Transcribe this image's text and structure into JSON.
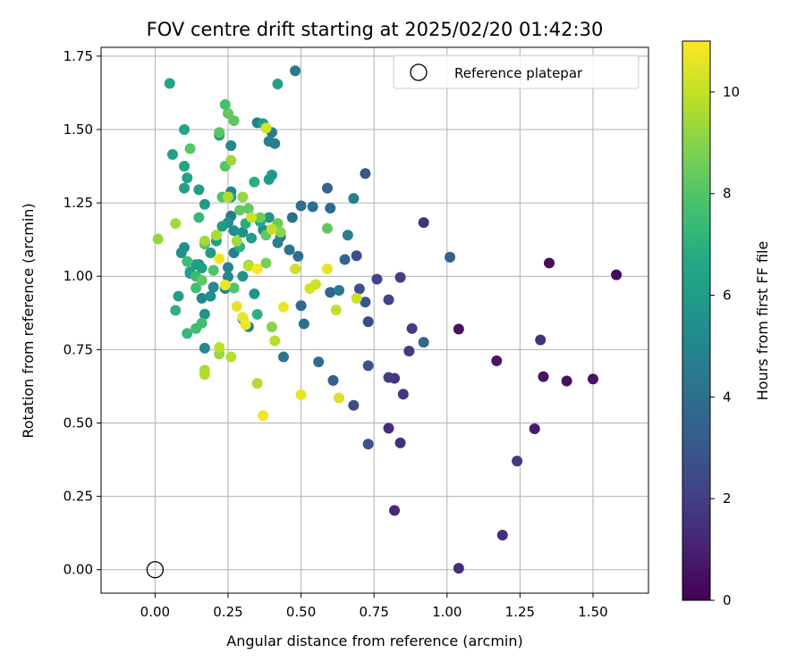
{
  "chart_data": {
    "type": "scatter",
    "title": "FOV centre drift starting at 2025/02/20 01:42:30",
    "xlabel": "Angular distance from reference (arcmin)",
    "ylabel": "Rotation from reference (arcmin)",
    "xlim": [
      -0.185,
      1.69
    ],
    "ylim": [
      -0.08,
      1.78
    ],
    "xticks": [
      "0.00",
      "0.25",
      "0.50",
      "0.75",
      "1.00",
      "1.25",
      "1.50"
    ],
    "xtick_values": [
      0,
      0.25,
      0.5,
      0.75,
      1.0,
      1.25,
      1.5
    ],
    "yticks": [
      "0.00",
      "0.25",
      "0.50",
      "0.75",
      "1.00",
      "1.25",
      "1.50",
      "1.75"
    ],
    "ytick_values": [
      0,
      0.25,
      0.5,
      0.75,
      1.0,
      1.25,
      1.5,
      1.75
    ],
    "grid": true,
    "legend": {
      "position": "top-right",
      "label": "Reference platepar",
      "marker": "hollow-circle"
    },
    "reference_point": {
      "x": 0.0,
      "y": 0.0
    },
    "colorbar": {
      "label": "Hours from first FF file",
      "colormap": "viridis",
      "range": [
        0,
        11
      ],
      "ticks": [
        "0",
        "2",
        "4",
        "6",
        "8",
        "10"
      ],
      "tick_values": [
        0,
        2,
        4,
        6,
        8,
        10
      ]
    },
    "points": [
      [
        1.58,
        1.005,
        0.3
      ],
      [
        1.35,
        1.045,
        0.4
      ],
      [
        1.04,
        0.82,
        0.5
      ],
      [
        1.5,
        0.65,
        0.6
      ],
      [
        1.41,
        0.643,
        0.5
      ],
      [
        1.33,
        0.658,
        0.6
      ],
      [
        1.17,
        0.712,
        0.7
      ],
      [
        1.3,
        0.48,
        0.8
      ],
      [
        1.04,
        0.005,
        1.4
      ],
      [
        1.19,
        0.118,
        1.5
      ],
      [
        1.24,
        0.37,
        1.8
      ],
      [
        1.32,
        0.783,
        1.6
      ],
      [
        0.92,
        1.183,
        1.6
      ],
      [
        0.8,
        0.482,
        1.4
      ],
      [
        0.82,
        0.202,
        1.2
      ],
      [
        0.84,
        0.432,
        1.5
      ],
      [
        0.85,
        0.598,
        1.8
      ],
      [
        0.82,
        0.652,
        1.6
      ],
      [
        0.8,
        0.655,
        2.0
      ],
      [
        0.87,
        0.745,
        1.8
      ],
      [
        0.88,
        0.822,
        1.9
      ],
      [
        0.84,
        0.996,
        2.0
      ],
      [
        0.8,
        0.92,
        2.3
      ],
      [
        0.76,
        0.99,
        2.2
      ],
      [
        0.73,
        0.428,
        2.8
      ],
      [
        0.68,
        0.56,
        2.6
      ],
      [
        0.73,
        0.695,
        2.9
      ],
      [
        0.73,
        0.845,
        2.5
      ],
      [
        0.72,
        0.912,
        2.9
      ],
      [
        0.7,
        0.957,
        2.6
      ],
      [
        0.69,
        1.07,
        2.6
      ],
      [
        0.72,
        1.35,
        3.0
      ],
      [
        1.01,
        1.065,
        3.3
      ],
      [
        0.92,
        0.775,
        3.6
      ],
      [
        0.61,
        0.645,
        3.4
      ],
      [
        0.65,
        1.057,
        3.7
      ],
      [
        0.59,
        1.3,
        3.5
      ],
      [
        0.6,
        0.945,
        3.5
      ],
      [
        0.56,
        0.708,
        3.9
      ],
      [
        0.6,
        1.232,
        3.8
      ],
      [
        0.54,
        1.237,
        3.9
      ],
      [
        0.51,
        0.838,
        4.1
      ],
      [
        0.5,
        0.9,
        3.8
      ],
      [
        0.5,
        1.24,
        4.0
      ],
      [
        0.49,
        1.068,
        4.0
      ],
      [
        0.47,
        1.2,
        4.1
      ],
      [
        0.46,
        1.09,
        4.2
      ],
      [
        0.44,
        0.725,
        4.3
      ],
      [
        0.63,
        0.952,
        4.5
      ],
      [
        0.66,
        1.14,
        4.6
      ],
      [
        0.68,
        1.265,
        4.7
      ],
      [
        0.48,
        1.7,
        4.5
      ],
      [
        0.41,
        1.452,
        4.6
      ],
      [
        0.4,
        1.49,
        4.5
      ],
      [
        0.43,
        1.135,
        4.3
      ],
      [
        0.42,
        1.114,
        4.8
      ],
      [
        0.39,
        1.46,
        4.9
      ],
      [
        0.35,
        1.523,
        4.8
      ],
      [
        0.26,
        1.205,
        4.4
      ],
      [
        0.27,
        1.08,
        4.7
      ],
      [
        0.25,
        1.03,
        4.8
      ],
      [
        0.26,
        1.288,
        4.9
      ],
      [
        0.26,
        1.445,
        5.0
      ],
      [
        0.3,
        0.855,
        4.9
      ],
      [
        0.32,
        0.828,
        4.9
      ],
      [
        0.25,
        0.998,
        5.0
      ],
      [
        0.24,
        0.958,
        5.1
      ],
      [
        0.2,
        0.963,
        5.1
      ],
      [
        0.17,
        0.755,
        5.2
      ],
      [
        0.16,
        0.925,
        5.0
      ],
      [
        0.15,
        1.04,
        5.1
      ],
      [
        0.12,
        1.01,
        5.2
      ],
      [
        0.1,
        1.098,
        5.4
      ],
      [
        0.09,
        1.08,
        5.4
      ],
      [
        0.17,
        0.871,
        5.5
      ],
      [
        0.19,
        0.932,
        5.5
      ],
      [
        0.25,
        1.183,
        5.4
      ],
      [
        0.27,
        1.155,
        5.3
      ],
      [
        0.3,
        1.15,
        5.5
      ],
      [
        0.3,
        1.0,
        5.6
      ],
      [
        0.32,
        1.037,
        5.6
      ],
      [
        0.34,
        0.94,
        5.7
      ],
      [
        0.37,
        1.158,
        5.5
      ],
      [
        0.39,
        1.2,
        5.7
      ],
      [
        0.4,
        1.345,
        5.9
      ],
      [
        0.39,
        1.33,
        6.0
      ],
      [
        0.37,
        1.52,
        6.1
      ],
      [
        0.42,
        1.655,
        6.2
      ],
      [
        0.33,
        1.13,
        6.1
      ],
      [
        0.26,
        1.27,
        5.9
      ],
      [
        0.23,
        1.17,
        6.0
      ],
      [
        0.22,
        1.48,
        6.2
      ],
      [
        0.21,
        1.12,
        6.1
      ],
      [
        0.19,
        1.08,
        6.0
      ],
      [
        0.17,
        1.245,
        6.0
      ],
      [
        0.15,
        1.295,
        6.1
      ],
      [
        0.16,
        1.028,
        6.2
      ],
      [
        0.14,
        1.04,
        6.1
      ],
      [
        0.12,
        1.015,
        6.3
      ],
      [
        0.08,
        0.932,
        6.1
      ],
      [
        0.1,
        1.3,
        6.2
      ],
      [
        0.11,
        1.335,
        6.3
      ],
      [
        0.1,
        1.375,
        6.4
      ],
      [
        0.06,
        1.415,
        6.2
      ],
      [
        0.05,
        1.657,
        6.4
      ],
      [
        0.1,
        1.5,
        6.5
      ],
      [
        0.36,
        1.186,
        6.5
      ],
      [
        0.34,
        1.321,
        6.9
      ],
      [
        0.35,
        0.87,
        7.0
      ],
      [
        0.29,
        1.1,
        7.0
      ],
      [
        0.31,
        1.18,
        6.8
      ],
      [
        0.07,
        0.884,
        7.0
      ],
      [
        0.11,
        0.805,
        7.3
      ],
      [
        0.14,
        0.822,
        7.5
      ],
      [
        0.16,
        0.84,
        7.6
      ],
      [
        0.14,
        0.96,
        7.6
      ],
      [
        0.15,
        1.2,
        7.3
      ],
      [
        0.14,
        1.0,
        7.4
      ],
      [
        0.11,
        1.05,
        7.5
      ],
      [
        0.17,
        1.11,
        7.8
      ],
      [
        0.2,
        1.02,
        7.9
      ],
      [
        0.21,
        1.14,
        7.8
      ],
      [
        0.23,
        1.27,
        7.9
      ],
      [
        0.24,
        1.375,
        8.0
      ],
      [
        0.22,
        1.49,
        8.1
      ],
      [
        0.27,
        1.53,
        8.2
      ],
      [
        0.25,
        1.555,
        8.3
      ],
      [
        0.24,
        1.585,
        7.7
      ],
      [
        0.12,
        1.435,
        8.1
      ],
      [
        0.16,
        0.986,
        8.2
      ],
      [
        0.27,
        0.96,
        8.0
      ],
      [
        0.29,
        1.225,
        8.3
      ],
      [
        0.32,
        1.23,
        8.3
      ],
      [
        0.36,
        1.2,
        8.5
      ],
      [
        0.38,
        1.14,
        8.3
      ],
      [
        0.38,
        1.045,
        8.7
      ],
      [
        0.59,
        1.163,
        8.2
      ],
      [
        0.42,
        1.18,
        8.5
      ],
      [
        0.4,
        0.827,
        9.0
      ],
      [
        0.43,
        1.15,
        9.0
      ],
      [
        0.3,
        1.27,
        9.2
      ],
      [
        0.26,
        1.395,
        9.3
      ],
      [
        0.28,
        1.12,
        9.4
      ],
      [
        0.25,
        1.27,
        9.6
      ],
      [
        0.21,
        1.14,
        9.6
      ],
      [
        0.17,
        1.12,
        9.5
      ],
      [
        0.07,
        1.18,
        9.5
      ],
      [
        0.01,
        1.127,
        9.2
      ],
      [
        0.17,
        0.68,
        9.6
      ],
      [
        0.17,
        0.665,
        9.7
      ],
      [
        0.22,
        0.735,
        9.3
      ],
      [
        0.26,
        0.725,
        9.8
      ],
      [
        0.22,
        0.757,
        9.9
      ],
      [
        0.35,
        0.635,
        9.7
      ],
      [
        0.41,
        0.78,
        9.8
      ],
      [
        0.38,
        1.505,
        10.3
      ],
      [
        0.32,
        1.035,
        9.9
      ],
      [
        0.33,
        1.2,
        10.1
      ],
      [
        0.4,
        1.16,
        10.0
      ],
      [
        0.62,
        0.885,
        10.0
      ],
      [
        0.69,
        0.925,
        10.1
      ],
      [
        0.48,
        1.025,
        10.2
      ],
      [
        0.53,
        0.958,
        10.3
      ],
      [
        0.55,
        0.972,
        10.2
      ],
      [
        0.59,
        1.025,
        10.6
      ],
      [
        0.63,
        0.585,
        10.4
      ],
      [
        0.5,
        0.596,
        10.6
      ],
      [
        0.37,
        0.525,
        10.8
      ],
      [
        0.28,
        0.897,
        10.6
      ],
      [
        0.3,
        0.86,
        10.7
      ],
      [
        0.31,
        0.835,
        10.8
      ],
      [
        0.44,
        0.895,
        10.7
      ],
      [
        0.24,
        0.97,
        10.7
      ],
      [
        0.22,
        1.06,
        10.8
      ],
      [
        0.35,
        1.025,
        11.0
      ]
    ]
  }
}
